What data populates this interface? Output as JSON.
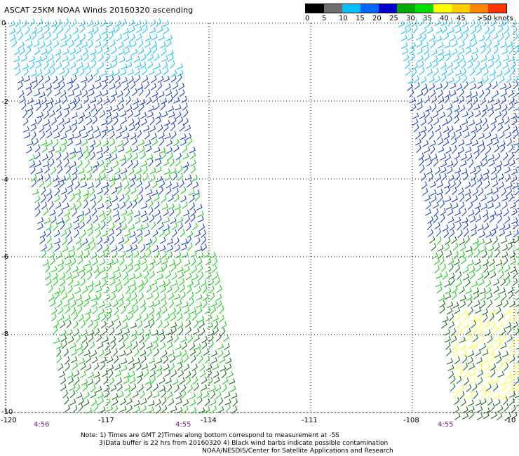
{
  "title": "ASCAT 25KM NOAA Winds 20160320 ascending",
  "legend": {
    "labels": [
      "0",
      "5",
      "10",
      "15",
      "20",
      "25",
      "30",
      "35",
      "40",
      "45",
      ">50 knots"
    ],
    "colors": [
      "#000000",
      "#6e6e6e",
      "#00bfff",
      "#0066ff",
      "#0000cc",
      "#00aa00",
      "#00dd00",
      "#ffff00",
      "#ffcc00",
      "#ff8800",
      "#ff3300"
    ]
  },
  "map": {
    "x_ticks": [
      "-120",
      "-117",
      "-114",
      "-111",
      "-108",
      "-10"
    ],
    "y_ticks": [
      "0",
      "-2",
      "-4",
      "-6",
      "-8",
      "-10"
    ],
    "time_labels": [
      "4:56",
      "4:55",
      "4:55"
    ]
  },
  "notes": [
    "Note: 1) Times are GMT 2)Times along bottom correspond to measurement at -5S",
    "3)Data buffer is 22 hrs from 20160320 4) Black wind barbs indicate possible contamination",
    "NOAA/NESDIS/Center for Satellite Applications and Research"
  ],
  "colors": {
    "calm": "#00bfff",
    "light": "#0033cc",
    "moderate": "#00cc00",
    "fresh": "#006400",
    "strong": "#ffff00",
    "time": "#7a1f8a",
    "grid": "#000000"
  }
}
